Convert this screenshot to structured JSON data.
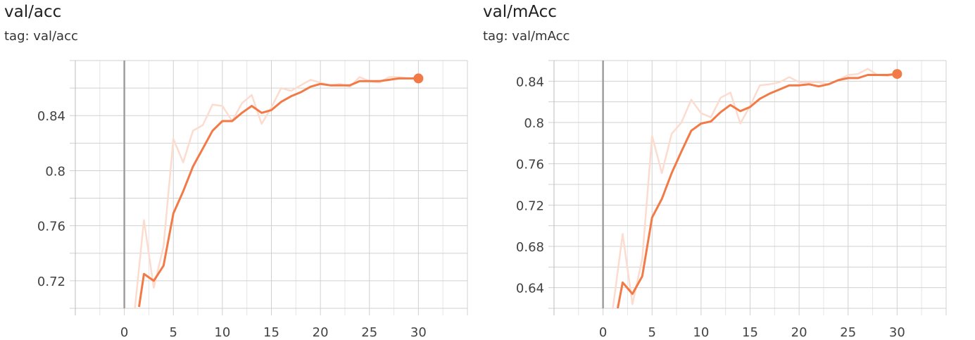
{
  "chart_data": [
    {
      "type": "line",
      "title": "val/acc",
      "tag_label": "tag: val/acc",
      "xticks": [
        0,
        5,
        10,
        15,
        20,
        25,
        30
      ],
      "yticks": [
        0.72,
        0.76,
        0.8,
        0.84
      ],
      "xlim": [
        -5,
        35
      ],
      "ylim": [
        0.7,
        0.88
      ],
      "grid": true,
      "series": [
        {
          "role": "raw",
          "color": "#fcdccf",
          "x": [
            1,
            2,
            3,
            4,
            5,
            6,
            7,
            8,
            9,
            10,
            11,
            12,
            13,
            14,
            15,
            16,
            17,
            18,
            19,
            20,
            21,
            22,
            23,
            24,
            25,
            26,
            27,
            28,
            29,
            30
          ],
          "y": [
            0.695,
            0.764,
            0.715,
            0.745,
            0.823,
            0.806,
            0.829,
            0.833,
            0.848,
            0.847,
            0.836,
            0.849,
            0.855,
            0.834,
            0.846,
            0.86,
            0.858,
            0.862,
            0.866,
            0.864,
            0.862,
            0.863,
            0.861,
            0.868,
            0.865,
            0.864,
            0.868,
            0.868,
            0.867,
            0.867
          ]
        },
        {
          "role": "smoothed",
          "color": "#f27a46",
          "x": [
            1.5,
            2,
            3,
            4,
            5,
            6,
            7,
            8,
            9,
            10,
            11,
            12,
            13,
            14,
            15,
            16,
            17,
            18,
            19,
            20,
            21,
            22,
            23,
            24,
            25,
            26,
            27,
            28,
            29,
            30
          ],
          "y": [
            0.701,
            0.725,
            0.72,
            0.731,
            0.769,
            0.785,
            0.803,
            0.816,
            0.829,
            0.836,
            0.836,
            0.842,
            0.847,
            0.842,
            0.844,
            0.85,
            0.854,
            0.857,
            0.861,
            0.863,
            0.862,
            0.862,
            0.862,
            0.865,
            0.865,
            0.865,
            0.866,
            0.867,
            0.867,
            0.867
          ]
        }
      ]
    },
    {
      "type": "line",
      "title": "val/mAcc",
      "tag_label": "tag: val/mAcc",
      "xticks": [
        0,
        5,
        10,
        15,
        20,
        25,
        30
      ],
      "yticks": [
        0.64,
        0.68,
        0.72,
        0.76,
        0.8,
        0.84
      ],
      "xlim": [
        -5,
        35
      ],
      "ylim": [
        0.62,
        0.86
      ],
      "grid": true,
      "series": [
        {
          "role": "raw",
          "color": "#fcdccf",
          "x": [
            1,
            2,
            3,
            4,
            5,
            6,
            7,
            8,
            9,
            10,
            11,
            12,
            13,
            14,
            15,
            16,
            17,
            18,
            19,
            20,
            21,
            22,
            23,
            24,
            25,
            26,
            27,
            28,
            29,
            30
          ],
          "y": [
            0.62,
            0.692,
            0.624,
            0.668,
            0.787,
            0.751,
            0.789,
            0.8,
            0.822,
            0.809,
            0.805,
            0.824,
            0.829,
            0.799,
            0.816,
            0.836,
            0.837,
            0.839,
            0.844,
            0.839,
            0.839,
            0.839,
            0.837,
            0.841,
            0.846,
            0.847,
            0.852,
            0.846,
            0.845,
            0.847
          ]
        },
        {
          "role": "smoothed",
          "color": "#f27a46",
          "x": [
            1.5,
            2,
            3,
            4,
            5,
            6,
            7,
            8,
            9,
            10,
            11,
            12,
            13,
            14,
            15,
            16,
            17,
            18,
            19,
            20,
            21,
            22,
            23,
            24,
            25,
            26,
            27,
            28,
            29,
            30
          ],
          "y": [
            0.62,
            0.645,
            0.634,
            0.651,
            0.708,
            0.726,
            0.751,
            0.772,
            0.792,
            0.799,
            0.801,
            0.81,
            0.817,
            0.811,
            0.815,
            0.823,
            0.828,
            0.832,
            0.836,
            0.836,
            0.837,
            0.835,
            0.837,
            0.841,
            0.843,
            0.843,
            0.846,
            0.846,
            0.846,
            0.847
          ]
        }
      ]
    }
  ]
}
